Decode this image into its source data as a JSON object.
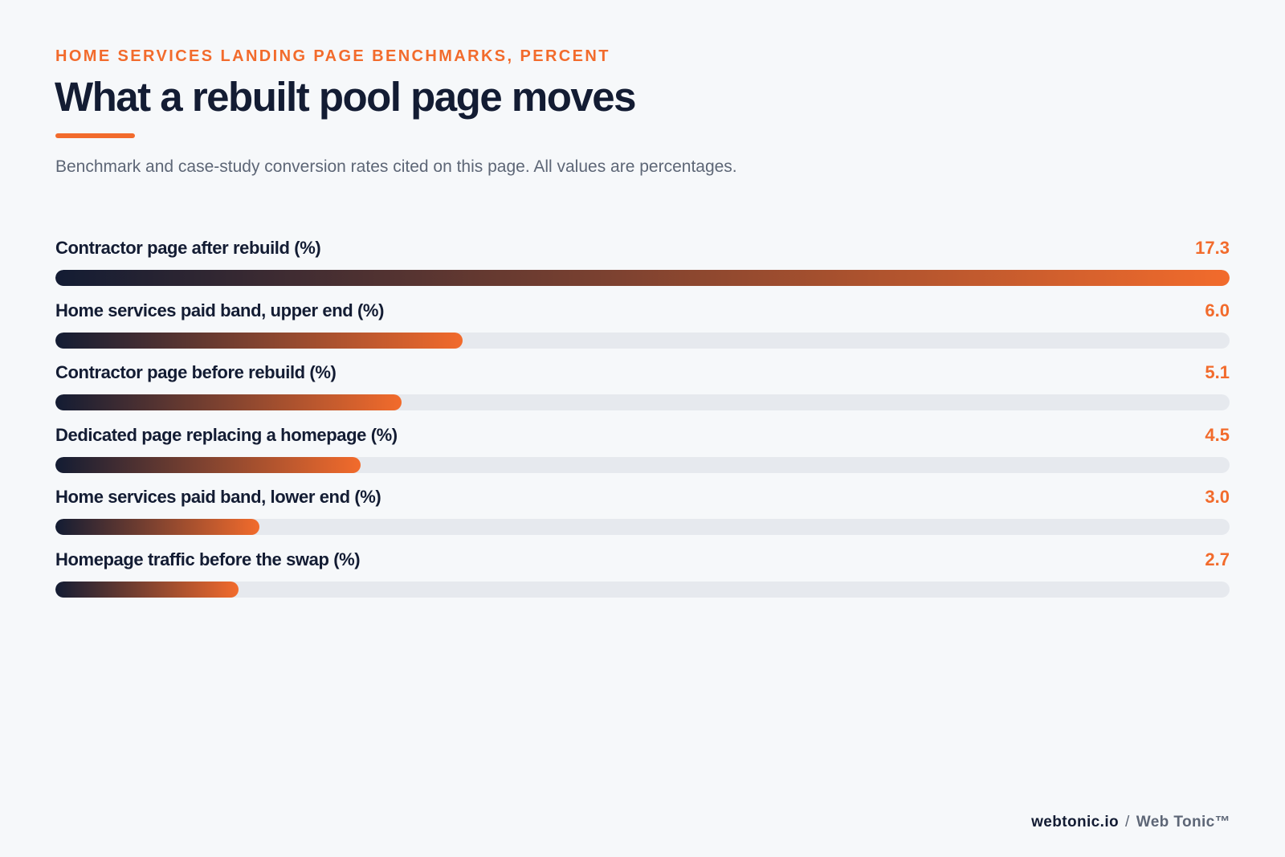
{
  "header": {
    "eyebrow": "HOME SERVICES LANDING PAGE BENCHMARKS, PERCENT",
    "title": "What a rebuilt pool page moves",
    "subtitle": "Benchmark and case-study conversion rates cited on this page. All values are percentages."
  },
  "colors": {
    "accent": "#f26b2c",
    "ink": "#131c33",
    "muted": "#5d6676",
    "track": "#e6e9ee",
    "background": "#f6f8fa"
  },
  "chart_data": {
    "type": "bar",
    "orientation": "horizontal",
    "title": "What a rebuilt pool page moves",
    "subtitle": "Benchmark and case-study conversion rates cited on this page. All values are percentages.",
    "xlim": [
      0,
      17.3
    ],
    "grid": false,
    "categories": [
      "Contractor page after rebuild (%)",
      "Home services paid band, upper end (%)",
      "Contractor page before rebuild (%)",
      "Dedicated page replacing a homepage (%)",
      "Home services paid band, lower end (%)",
      "Homepage traffic before the swap (%)"
    ],
    "values": [
      17.3,
      6.0,
      5.1,
      4.5,
      3.0,
      2.7
    ],
    "value_labels": [
      "17.3",
      "6.0",
      "5.1",
      "4.5",
      "3.0",
      "2.7"
    ]
  },
  "footer": {
    "domain": "webtonic.io",
    "separator": "/",
    "brand": "Web Tonic™"
  }
}
